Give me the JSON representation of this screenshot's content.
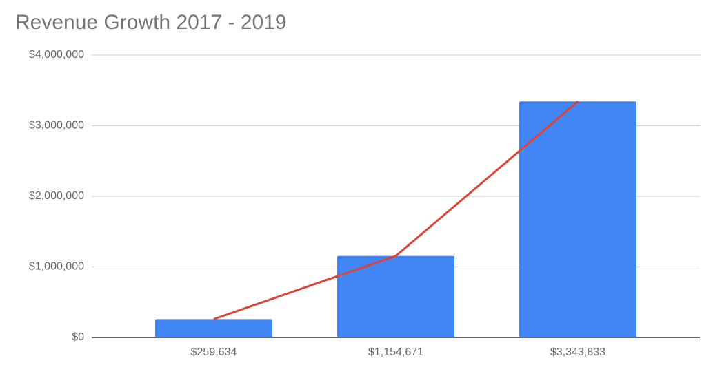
{
  "chart_data": {
    "type": "bar",
    "title": "Revenue Growth 2017 - 2019",
    "categories": [
      "$259,634",
      "$1,154,671",
      "$3,343,833"
    ],
    "series": [
      {
        "type": "bar",
        "color": "#4285f4",
        "values": [
          259634,
          1154671,
          3343833
        ]
      },
      {
        "type": "line",
        "color": "#db4437",
        "values": [
          259634,
          1154671,
          3343833
        ]
      }
    ],
    "ylim": [
      0,
      4000000
    ],
    "yticks": [
      {
        "value": 0,
        "label": "$0"
      },
      {
        "value": 1000000,
        "label": "$1,000,000"
      },
      {
        "value": 2000000,
        "label": "$2,000,000"
      },
      {
        "value": 3000000,
        "label": "$3,000,000"
      },
      {
        "value": 4000000,
        "label": "$4,000,000"
      }
    ],
    "grid": true
  }
}
